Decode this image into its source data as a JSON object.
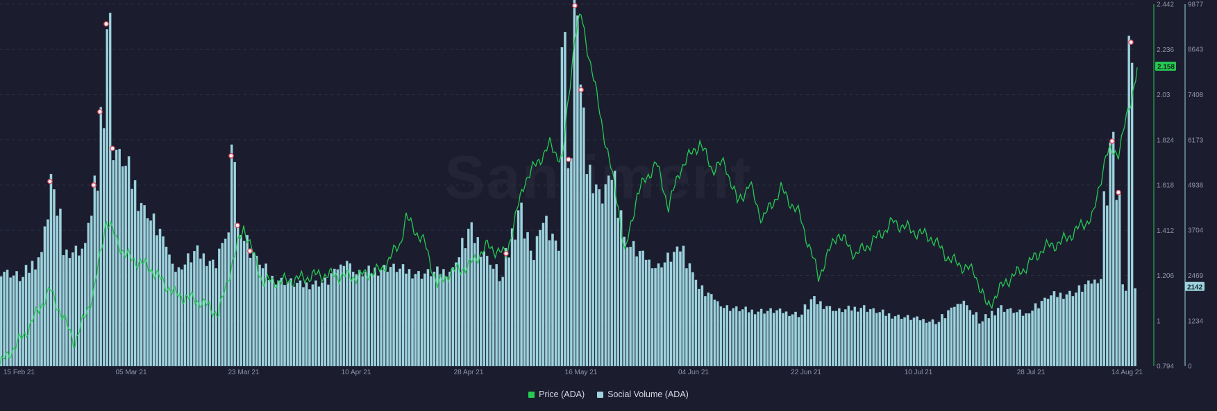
{
  "watermark": "Santiment",
  "legend": {
    "price_label": "Price (ADA)",
    "volume_label": "Social Volume (ADA)",
    "price_color": "#26c953",
    "volume_color": "#9fd3de"
  },
  "chart_data": {
    "type": "bar+line",
    "title": "",
    "x_ticks": [
      "15 Feb 21",
      "05 Mar 21",
      "23 Mar 21",
      "10 Apr 21",
      "28 Apr 21",
      "16 May 21",
      "04 Jun 21",
      "22 Jun 21",
      "10 Jul 21",
      "28 Jul 21",
      "14 Aug 21"
    ],
    "price_axis": {
      "label": "Price (ADA)",
      "min": 0.794,
      "max": 2.442,
      "ticks": [
        "2.442",
        "2.236",
        "2.03",
        "1.824",
        "1.618",
        "1.412",
        "1.206",
        "1",
        "0.794"
      ]
    },
    "volume_axis": {
      "label": "Social Volume (ADA)",
      "min": 0,
      "max": 9877,
      "ticks": [
        "9877",
        "8643",
        "7408",
        "6173",
        "4938",
        "3704",
        "2469",
        "1234",
        "0"
      ]
    },
    "current_price_label": "2.158",
    "current_volume_label": "2142",
    "volume_series_keypoints": [
      {
        "date": "2021-02-12",
        "value": 2600
      },
      {
        "date": "2021-02-15",
        "value": 2400
      },
      {
        "date": "2021-02-18",
        "value": 3000
      },
      {
        "date": "2021-02-20",
        "value": 5000
      },
      {
        "date": "2021-02-22",
        "value": 3100
      },
      {
        "date": "2021-02-25",
        "value": 3200
      },
      {
        "date": "2021-02-27",
        "value": 4900
      },
      {
        "date": "2021-02-28",
        "value": 6900
      },
      {
        "date": "2021-03-01",
        "value": 9300
      },
      {
        "date": "2021-03-02",
        "value": 5900
      },
      {
        "date": "2021-03-04",
        "value": 5400
      },
      {
        "date": "2021-03-06",
        "value": 4500
      },
      {
        "date": "2021-03-09",
        "value": 3700
      },
      {
        "date": "2021-03-12",
        "value": 2600
      },
      {
        "date": "2021-03-15",
        "value": 3100
      },
      {
        "date": "2021-03-18",
        "value": 2800
      },
      {
        "date": "2021-03-20",
        "value": 3600
      },
      {
        "date": "2021-03-21",
        "value": 5700
      },
      {
        "date": "2021-03-22",
        "value": 3800
      },
      {
        "date": "2021-03-24",
        "value": 3100
      },
      {
        "date": "2021-03-27",
        "value": 2400
      },
      {
        "date": "2021-04-01",
        "value": 2200
      },
      {
        "date": "2021-04-05",
        "value": 2300
      },
      {
        "date": "2021-04-08",
        "value": 2900
      },
      {
        "date": "2021-04-10",
        "value": 2500
      },
      {
        "date": "2021-04-15",
        "value": 2700
      },
      {
        "date": "2021-04-20",
        "value": 2500
      },
      {
        "date": "2021-04-25",
        "value": 2600
      },
      {
        "date": "2021-04-28",
        "value": 3700
      },
      {
        "date": "2021-05-01",
        "value": 2900
      },
      {
        "date": "2021-05-03",
        "value": 2400
      },
      {
        "date": "2021-05-06",
        "value": 4300
      },
      {
        "date": "2021-05-08",
        "value": 3000
      },
      {
        "date": "2021-05-10",
        "value": 4000
      },
      {
        "date": "2021-05-12",
        "value": 3300
      },
      {
        "date": "2021-05-13",
        "value": 8700
      },
      {
        "date": "2021-05-14",
        "value": 5600
      },
      {
        "date": "2021-05-15",
        "value": 9800
      },
      {
        "date": "2021-05-16",
        "value": 7500
      },
      {
        "date": "2021-05-17",
        "value": 5300
      },
      {
        "date": "2021-05-19",
        "value": 4600
      },
      {
        "date": "2021-05-21",
        "value": 5200
      },
      {
        "date": "2021-05-23",
        "value": 3400
      },
      {
        "date": "2021-05-25",
        "value": 3100
      },
      {
        "date": "2021-05-28",
        "value": 2700
      },
      {
        "date": "2021-06-01",
        "value": 3200
      },
      {
        "date": "2021-06-04",
        "value": 2100
      },
      {
        "date": "2021-06-08",
        "value": 1600
      },
      {
        "date": "2021-06-12",
        "value": 1500
      },
      {
        "date": "2021-06-16",
        "value": 1500
      },
      {
        "date": "2021-06-20",
        "value": 1400
      },
      {
        "date": "2021-06-22",
        "value": 1800
      },
      {
        "date": "2021-06-26",
        "value": 1500
      },
      {
        "date": "2021-06-30",
        "value": 1600
      },
      {
        "date": "2021-07-04",
        "value": 1400
      },
      {
        "date": "2021-07-08",
        "value": 1300
      },
      {
        "date": "2021-07-12",
        "value": 1200
      },
      {
        "date": "2021-07-16",
        "value": 1800
      },
      {
        "date": "2021-07-19",
        "value": 1200
      },
      {
        "date": "2021-07-22",
        "value": 1600
      },
      {
        "date": "2021-07-26",
        "value": 1400
      },
      {
        "date": "2021-07-30",
        "value": 1900
      },
      {
        "date": "2021-08-03",
        "value": 2000
      },
      {
        "date": "2021-08-05",
        "value": 2200
      },
      {
        "date": "2021-08-07",
        "value": 2400
      },
      {
        "date": "2021-08-08",
        "value": 4600
      },
      {
        "date": "2021-08-09",
        "value": 6100
      },
      {
        "date": "2021-08-10",
        "value": 4700
      },
      {
        "date": "2021-08-11",
        "value": 2100
      },
      {
        "date": "2021-08-12",
        "value": 8800
      },
      {
        "date": "2021-08-13",
        "value": 2142
      }
    ],
    "price_series_keypoints": [
      {
        "date": "2021-02-12",
        "value": 0.8
      },
      {
        "date": "2021-02-16",
        "value": 0.94
      },
      {
        "date": "2021-02-20",
        "value": 1.14
      },
      {
        "date": "2021-02-24",
        "value": 0.9
      },
      {
        "date": "2021-02-27",
        "value": 1.13
      },
      {
        "date": "2021-03-01",
        "value": 1.46
      },
      {
        "date": "2021-03-04",
        "value": 1.3
      },
      {
        "date": "2021-03-08",
        "value": 1.24
      },
      {
        "date": "2021-03-12",
        "value": 1.12
      },
      {
        "date": "2021-03-16",
        "value": 1.09
      },
      {
        "date": "2021-03-19",
        "value": 1.03
      },
      {
        "date": "2021-03-21",
        "value": 1.25
      },
      {
        "date": "2021-03-23",
        "value": 1.43
      },
      {
        "date": "2021-03-26",
        "value": 1.18
      },
      {
        "date": "2021-03-30",
        "value": 1.18
      },
      {
        "date": "2021-04-04",
        "value": 1.21
      },
      {
        "date": "2021-04-10",
        "value": 1.2
      },
      {
        "date": "2021-04-14",
        "value": 1.23
      },
      {
        "date": "2021-04-17",
        "value": 1.35
      },
      {
        "date": "2021-04-18",
        "value": 1.47
      },
      {
        "date": "2021-04-21",
        "value": 1.35
      },
      {
        "date": "2021-04-23",
        "value": 1.16
      },
      {
        "date": "2021-04-25",
        "value": 1.22
      },
      {
        "date": "2021-04-28",
        "value": 1.25
      },
      {
        "date": "2021-05-01",
        "value": 1.34
      },
      {
        "date": "2021-05-04",
        "value": 1.3
      },
      {
        "date": "2021-05-07",
        "value": 1.64
      },
      {
        "date": "2021-05-09",
        "value": 1.72
      },
      {
        "date": "2021-05-11",
        "value": 1.8
      },
      {
        "date": "2021-05-13",
        "value": 1.73
      },
      {
        "date": "2021-05-15",
        "value": 2.3
      },
      {
        "date": "2021-05-16",
        "value": 2.39
      },
      {
        "date": "2021-05-18",
        "value": 2.1
      },
      {
        "date": "2021-05-20",
        "value": 1.8
      },
      {
        "date": "2021-05-22",
        "value": 1.52
      },
      {
        "date": "2021-05-23",
        "value": 1.3
      },
      {
        "date": "2021-05-25",
        "value": 1.58
      },
      {
        "date": "2021-05-28",
        "value": 1.72
      },
      {
        "date": "2021-05-30",
        "value": 1.52
      },
      {
        "date": "2021-06-01",
        "value": 1.7
      },
      {
        "date": "2021-06-04",
        "value": 1.81
      },
      {
        "date": "2021-06-06",
        "value": 1.69
      },
      {
        "date": "2021-06-08",
        "value": 1.72
      },
      {
        "date": "2021-06-10",
        "value": 1.54
      },
      {
        "date": "2021-06-12",
        "value": 1.62
      },
      {
        "date": "2021-06-14",
        "value": 1.46
      },
      {
        "date": "2021-06-17",
        "value": 1.6
      },
      {
        "date": "2021-06-20",
        "value": 1.48
      },
      {
        "date": "2021-06-23",
        "value": 1.2
      },
      {
        "date": "2021-06-26",
        "value": 1.4
      },
      {
        "date": "2021-06-29",
        "value": 1.3
      },
      {
        "date": "2021-07-02",
        "value": 1.37
      },
      {
        "date": "2021-07-05",
        "value": 1.45
      },
      {
        "date": "2021-07-08",
        "value": 1.41
      },
      {
        "date": "2021-07-11",
        "value": 1.38
      },
      {
        "date": "2021-07-14",
        "value": 1.28
      },
      {
        "date": "2021-07-18",
        "value": 1.22
      },
      {
        "date": "2021-07-20",
        "value": 1.06
      },
      {
        "date": "2021-07-23",
        "value": 1.18
      },
      {
        "date": "2021-07-26",
        "value": 1.24
      },
      {
        "date": "2021-07-29",
        "value": 1.33
      },
      {
        "date": "2021-08-01",
        "value": 1.36
      },
      {
        "date": "2021-08-04",
        "value": 1.43
      },
      {
        "date": "2021-08-06",
        "value": 1.48
      },
      {
        "date": "2021-08-08",
        "value": 1.76
      },
      {
        "date": "2021-08-10",
        "value": 1.77
      },
      {
        "date": "2021-08-12",
        "value": 2.0
      },
      {
        "date": "2021-08-13",
        "value": 2.158
      }
    ],
    "grid": true,
    "legend_position": "bottom-center"
  }
}
